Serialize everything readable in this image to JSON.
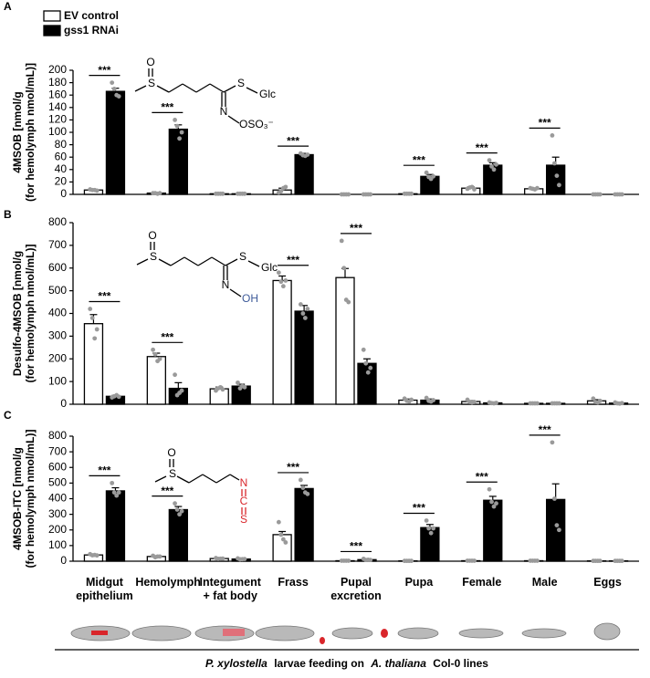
{
  "chart_data": [
    {
      "type": "bar",
      "label": "A",
      "ylabel": [
        "4MSOB [nmol/g",
        "(for hemolymph nmol/mL)]"
      ],
      "ylim": [
        0,
        200
      ],
      "yticks": [
        0,
        20,
        40,
        60,
        80,
        100,
        120,
        140,
        160,
        180,
        200
      ],
      "structure": [
        "O",
        "S",
        "S",
        "Glc",
        "N",
        "OSO₃⁻"
      ],
      "significance": [
        "***",
        "***",
        null,
        "***",
        null,
        "***",
        "***",
        "***",
        null
      ],
      "series": [
        {
          "name": "EV control",
          "color": "#ffffff",
          "values": [
            7,
            2,
            1,
            7,
            0,
            1,
            10,
            9,
            0
          ],
          "errors": [
            1,
            0.5,
            0.3,
            3,
            0,
            0.3,
            2,
            1,
            0
          ],
          "points": [
            [
              8,
              7,
              7,
              6
            ],
            [
              2,
              2,
              1,
              2
            ],
            [
              1,
              1,
              1,
              1
            ],
            [
              3,
              5,
              10,
              12
            ],
            [
              0,
              0,
              0,
              0
            ],
            [
              1,
              1,
              1,
              1
            ],
            [
              9,
              11,
              12,
              8
            ],
            [
              10,
              9,
              8,
              10
            ],
            [
              0,
              0,
              0,
              0
            ]
          ]
        },
        {
          "name": "gss1 RNAi",
          "color": "#000000",
          "values": [
            166,
            105,
            1,
            64,
            0,
            29,
            47,
            47,
            0
          ],
          "errors": [
            5,
            7,
            0.3,
            2,
            0,
            3,
            4,
            13,
            0
          ],
          "points": [
            [
              180,
              170,
              160,
              158
            ],
            [
              120,
              110,
              90,
              100
            ],
            [
              1,
              1,
              1,
              1
            ],
            [
              66,
              63,
              62,
              64
            ],
            [
              0,
              0,
              0,
              0
            ],
            [
              35,
              28,
              25,
              29
            ],
            [
              55,
              45,
              40,
              48
            ],
            [
              95,
              50,
              30,
              15
            ],
            [
              0,
              0,
              0,
              0
            ]
          ]
        }
      ]
    },
    {
      "type": "bar",
      "label": "B",
      "ylabel": [
        "Desulfo-4MSOB [nmol/g",
        "(for hemolymph nmol/mL)]"
      ],
      "ylim": [
        0,
        800
      ],
      "yticks": [
        0,
        100,
        200,
        300,
        400,
        500,
        600,
        700,
        800
      ],
      "structure": [
        "O",
        "S",
        "S",
        "Glc",
        "N",
        "OH"
      ],
      "significance": [
        "***",
        "***",
        null,
        "***",
        "***",
        null,
        null,
        null,
        null
      ],
      "series": [
        {
          "color": "#ffffff",
          "values": [
            355,
            210,
            68,
            545,
            558,
            18,
            12,
            4,
            15
          ],
          "errors": [
            40,
            15,
            8,
            20,
            40,
            5,
            4,
            1,
            5
          ],
          "points": [
            [
              420,
              380,
              290,
              330
            ],
            [
              240,
              220,
              190,
              200
            ],
            [
              60,
              70,
              75,
              65
            ],
            [
              580,
              540,
              520,
              545
            ],
            [
              720,
              600,
              460,
              450
            ],
            [
              25,
              15,
              12,
              20
            ],
            [
              20,
              10,
              8,
              10
            ],
            [
              4,
              4,
              4,
              4
            ],
            [
              25,
              10,
              8,
              15
            ]
          ]
        },
        {
          "color": "#000000",
          "values": [
            35,
            70,
            80,
            410,
            180,
            18,
            6,
            4,
            5
          ],
          "errors": [
            4,
            25,
            8,
            25,
            20,
            5,
            2,
            1,
            2
          ],
          "points": [
            [
              30,
              35,
              40,
              33
            ],
            [
              130,
              40,
              50,
              60
            ],
            [
              95,
              70,
              80,
              75
            ],
            [
              440,
              400,
              380,
              420
            ],
            [
              240,
              180,
              140,
              160
            ],
            [
              28,
              15,
              12,
              18
            ],
            [
              8,
              5,
              4,
              6
            ],
            [
              4,
              4,
              4,
              4
            ],
            [
              8,
              4,
              3,
              5
            ]
          ]
        }
      ]
    },
    {
      "type": "bar",
      "label": "C",
      "ylabel": [
        "4MSOB-ITC [nmol/g",
        "(for hemolymph nmol/mL)]"
      ],
      "ylim": [
        0,
        800
      ],
      "yticks": [
        0,
        100,
        200,
        300,
        400,
        500,
        600,
        700,
        800
      ],
      "structure": [
        "O",
        "S",
        "N",
        "C",
        "S"
      ],
      "significance": [
        "***",
        "***",
        null,
        "***",
        "***",
        "***",
        "***",
        "***",
        null
      ],
      "categories": [
        "Midgut epithelium",
        "Hemolymph",
        "Integument + fat body",
        "Frass",
        "Pupal excretion",
        "Pupa",
        "Female",
        "Male",
        "Eggs"
      ],
      "xlabel": [
        "P. xylostella",
        "larvae feeding on",
        "A. thaliana",
        "Col-0 lines"
      ],
      "series": [
        {
          "color": "#ffffff",
          "values": [
            40,
            30,
            17,
            170,
            3,
            2,
            3,
            3,
            2
          ],
          "errors": [
            5,
            5,
            3,
            20,
            1,
            0.5,
            1,
            1,
            0.5
          ],
          "points": [
            [
              45,
              38,
              40,
              37
            ],
            [
              35,
              25,
              30,
              30
            ],
            [
              20,
              15,
              16,
              17
            ],
            [
              250,
              170,
              140,
              120
            ],
            [
              3,
              3,
              3,
              3
            ],
            [
              2,
              2,
              2,
              2
            ],
            [
              3,
              3,
              3,
              3
            ],
            [
              3,
              3,
              3,
              3
            ],
            [
              2,
              2,
              2,
              2
            ]
          ]
        },
        {
          "color": "#000000",
          "values": [
            450,
            330,
            14,
            465,
            10,
            215,
            390,
            395,
            2
          ],
          "errors": [
            20,
            20,
            3,
            20,
            3,
            20,
            25,
            100,
            0.5
          ],
          "points": [
            [
              500,
              440,
              420,
              440
            ],
            [
              370,
              330,
              300,
              320
            ],
            [
              18,
              12,
              13,
              14
            ],
            [
              520,
              470,
              440,
              430
            ],
            [
              15,
              8,
              9,
              8
            ],
            [
              260,
              210,
              180,
              210
            ],
            [
              460,
              380,
              350,
              370
            ],
            [
              760,
              400,
              230,
              200
            ],
            [
              2,
              2,
              2,
              2
            ]
          ]
        }
      ]
    }
  ]
}
